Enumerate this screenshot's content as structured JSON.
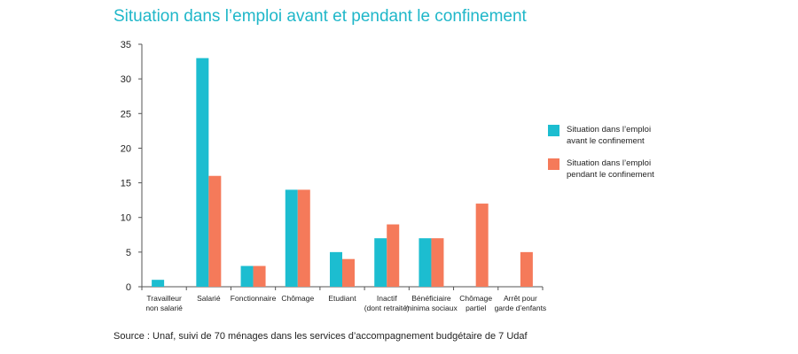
{
  "title": "Situation dans l’emploi avant et pendant le confinement",
  "source": "Source : Unaf, suivi de 70 ménages dans les services d’accompagnement budgétaire de 7 Udaf",
  "legend": [
    {
      "label": "Situation dans l’emploi\navant le confinement",
      "color": "#1cbdd0"
    },
    {
      "label": "Situation dans l’emploi\npendant le confinement",
      "color": "#f57a5a"
    }
  ],
  "chart_data": {
    "type": "bar",
    "title": "Situation dans l’emploi avant et pendant le confinement",
    "categories": [
      "Travailleur\nnon salarié",
      "Salarié",
      "Fonctionnaire",
      "Chômage",
      "Etudiant",
      "Inactif\n(dont retraité)",
      "Bénéficiaire\nminima sociaux",
      "Chômage\npartiel",
      "Arrêt pour\ngarde d’enfants"
    ],
    "series": [
      {
        "name": "Situation dans l’emploi avant le confinement",
        "color": "#1cbdd0",
        "values": [
          1,
          33,
          3,
          14,
          5,
          7,
          7,
          0,
          0
        ]
      },
      {
        "name": "Situation dans l’emploi pendant le confinement",
        "color": "#f57a5a",
        "values": [
          0,
          16,
          3,
          14,
          4,
          9,
          7,
          12,
          5
        ]
      }
    ],
    "ylim": [
      0,
      35
    ],
    "yticks": [
      0,
      5,
      10,
      15,
      20,
      25,
      30,
      35
    ],
    "xlabel": "",
    "ylabel": "",
    "grid": false,
    "legend_position": "right"
  }
}
